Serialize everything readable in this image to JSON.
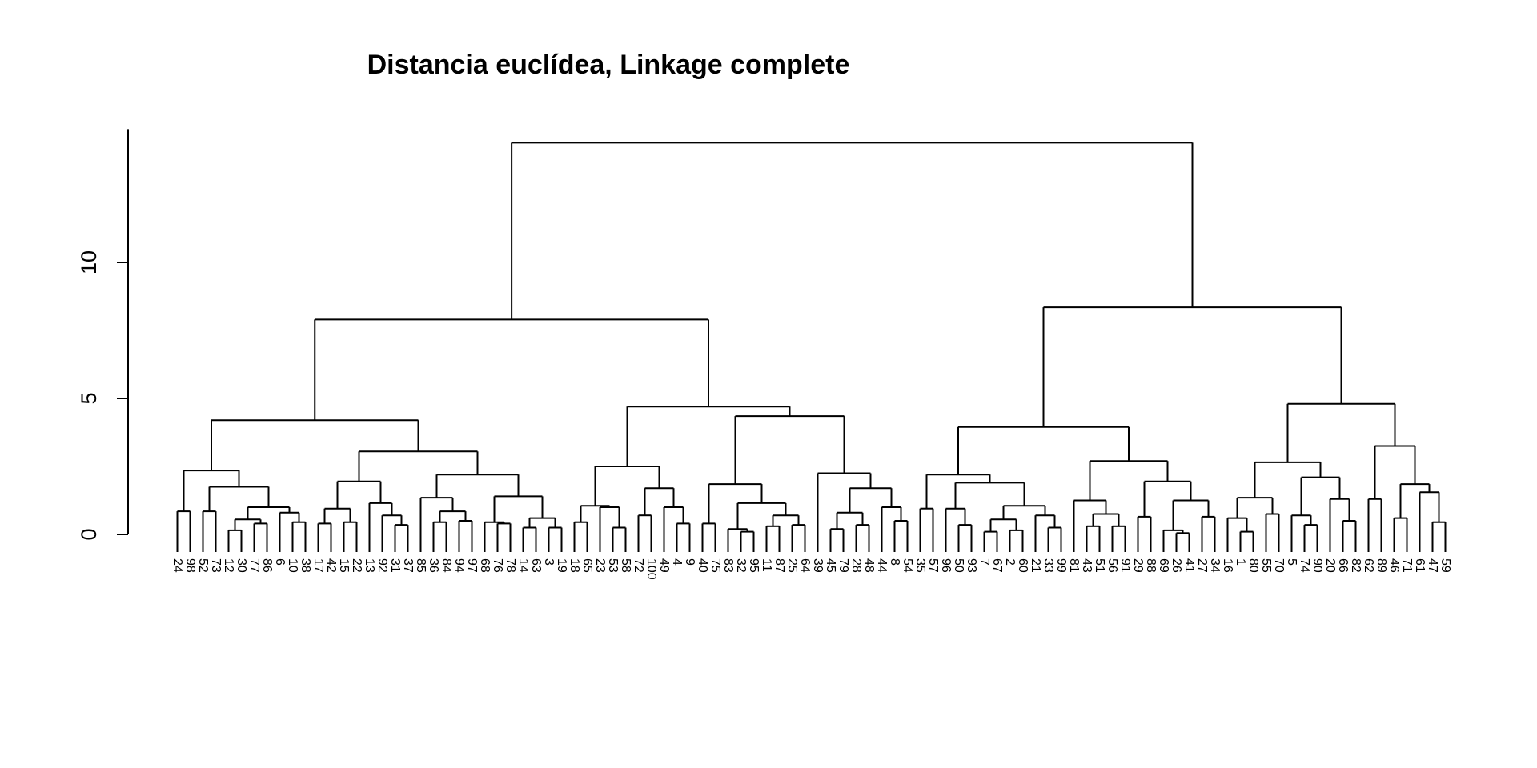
{
  "chart_data": {
    "type": "dendrogram",
    "title": "Distancia euclídea, Linkage complete",
    "xlabel": "",
    "ylabel": "",
    "y_ticks": [
      0,
      5,
      10
    ],
    "ylim": [
      0,
      14.5
    ],
    "leaf_order": [
      24,
      98,
      52,
      73,
      12,
      30,
      77,
      86,
      6,
      10,
      38,
      17,
      42,
      15,
      22,
      13,
      92,
      31,
      37,
      85,
      36,
      84,
      94,
      97,
      68,
      76,
      78,
      14,
      63,
      3,
      19,
      18,
      65,
      23,
      53,
      58,
      72,
      100,
      49,
      4,
      9,
      40,
      75,
      83,
      32,
      95,
      11,
      87,
      25,
      64,
      39,
      45,
      79,
      28,
      48,
      44,
      8,
      54,
      35,
      57,
      96,
      50,
      93,
      7,
      67,
      2,
      60,
      21,
      33,
      99,
      81,
      43,
      51,
      56,
      91,
      29,
      88,
      69,
      26,
      41,
      27,
      34,
      16,
      1,
      80,
      55,
      70,
      5,
      74,
      90,
      20,
      66,
      82,
      62,
      89,
      46,
      71,
      61,
      47,
      59
    ],
    "tree": {
      "h": 14.4,
      "c": [
        {
          "h": 7.9,
          "c": [
            {
              "h": 4.2,
              "c": [
                {
                  "h": 2.35,
                  "c": [
                    {
                      "h": 0.85,
                      "c": [
                        24,
                        98
                      ]
                    },
                    {
                      "h": 1.75,
                      "c": [
                        {
                          "h": 0.85,
                          "c": [
                            52,
                            73
                          ]
                        },
                        {
                          "h": 1.0,
                          "c": [
                            {
                              "h": 0.55,
                              "c": [
                                {
                                  "h": 0.15,
                                  "c": [
                                    12,
                                    30
                                  ]
                                },
                                {
                                  "h": 0.4,
                                  "c": [
                                    77,
                                    86
                                  ]
                                }
                              ]
                            },
                            {
                              "h": 0.8,
                              "c": [
                                6,
                                {
                                  "h": 0.45,
                                  "c": [
                                    10,
                                    38
                                  ]
                                }
                              ]
                            }
                          ]
                        }
                      ]
                    }
                  ]
                },
                {
                  "h": 3.05,
                  "c": [
                    {
                      "h": 1.95,
                      "c": [
                        {
                          "h": 0.95,
                          "c": [
                            {
                              "h": 0.4,
                              "c": [
                                17,
                                42
                              ]
                            },
                            {
                              "h": 0.45,
                              "c": [
                                15,
                                22
                              ]
                            }
                          ]
                        },
                        {
                          "h": 1.15,
                          "c": [
                            13,
                            {
                              "h": 0.7,
                              "c": [
                                92,
                                {
                                  "h": 0.35,
                                  "c": [
                                    31,
                                    37
                                  ]
                                }
                              ]
                            }
                          ]
                        }
                      ]
                    },
                    {
                      "h": 2.2,
                      "c": [
                        {
                          "h": 1.35,
                          "c": [
                            85,
                            {
                              "h": 0.85,
                              "c": [
                                {
                                  "h": 0.45,
                                  "c": [
                                    36,
                                    84
                                  ]
                                },
                                {
                                  "h": 0.5,
                                  "c": [
                                    94,
                                    97
                                  ]
                                }
                              ]
                            }
                          ]
                        },
                        {
                          "h": 1.4,
                          "c": [
                            {
                              "h": 0.45,
                              "c": [
                                68,
                                {
                                  "h": 0.4,
                                  "c": [
                                    76,
                                    78
                                  ]
                                }
                              ]
                            },
                            {
                              "h": 0.6,
                              "c": [
                                {
                                  "h": 0.25,
                                  "c": [
                                    14,
                                    63
                                  ]
                                },
                                {
                                  "h": 0.25,
                                  "c": [
                                    3,
                                    19
                                  ]
                                }
                              ]
                            }
                          ]
                        }
                      ]
                    }
                  ]
                }
              ]
            },
            {
              "h": 4.7,
              "c": [
                {
                  "h": 2.5,
                  "c": [
                    {
                      "h": 1.05,
                      "c": [
                        {
                          "h": 0.45,
                          "c": [
                            18,
                            65
                          ]
                        },
                        {
                          "h": 1.0,
                          "c": [
                            23,
                            {
                              "h": 0.25,
                              "c": [
                                53,
                                58
                              ]
                            }
                          ]
                        }
                      ]
                    },
                    {
                      "h": 1.7,
                      "c": [
                        {
                          "h": 0.7,
                          "c": [
                            72,
                            100
                          ]
                        },
                        {
                          "h": 1.0,
                          "c": [
                            49,
                            {
                              "h": 0.4,
                              "c": [
                                4,
                                9
                              ]
                            }
                          ]
                        }
                      ]
                    }
                  ]
                },
                {
                  "h": 4.35,
                  "c": [
                    {
                      "h": 1.85,
                      "c": [
                        {
                          "h": 0.4,
                          "c": [
                            40,
                            75
                          ]
                        },
                        {
                          "h": 1.15,
                          "c": [
                            {
                              "h": 0.2,
                              "c": [
                                83,
                                {
                                  "h": 0.1,
                                  "c": [
                                    32,
                                    95
                                  ]
                                }
                              ]
                            },
                            {
                              "h": 0.7,
                              "c": [
                                {
                                  "h": 0.3,
                                  "c": [
                                    11,
                                    87
                                  ]
                                },
                                {
                                  "h": 0.35,
                                  "c": [
                                    25,
                                    64
                                  ]
                                }
                              ]
                            }
                          ]
                        }
                      ]
                    },
                    {
                      "h": 2.25,
                      "c": [
                        39,
                        {
                          "h": 1.7,
                          "c": [
                            {
                              "h": 0.8,
                              "c": [
                                {
                                  "h": 0.2,
                                  "c": [
                                    45,
                                    79
                                  ]
                                },
                                {
                                  "h": 0.35,
                                  "c": [
                                    28,
                                    48
                                  ]
                                }
                              ]
                            },
                            {
                              "h": 1.0,
                              "c": [
                                44,
                                {
                                  "h": 0.5,
                                  "c": [
                                    8,
                                    54
                                  ]
                                }
                              ]
                            }
                          ]
                        }
                      ]
                    }
                  ]
                }
              ]
            }
          ]
        },
        {
          "h": 8.35,
          "c": [
            {
              "h": 3.95,
              "c": [
                {
                  "h": 2.2,
                  "c": [
                    {
                      "h": 0.95,
                      "c": [
                        35,
                        57
                      ]
                    },
                    {
                      "h": 1.9,
                      "c": [
                        {
                          "h": 0.95,
                          "c": [
                            96,
                            {
                              "h": 0.35,
                              "c": [
                                50,
                                93
                              ]
                            }
                          ]
                        },
                        {
                          "h": 1.05,
                          "c": [
                            {
                              "h": 0.55,
                              "c": [
                                {
                                  "h": 0.1,
                                  "c": [
                                    7,
                                    67
                                  ]
                                },
                                {
                                  "h": 0.15,
                                  "c": [
                                    2,
                                    60
                                  ]
                                }
                              ]
                            },
                            {
                              "h": 0.7,
                              "c": [
                                21,
                                {
                                  "h": 0.25,
                                  "c": [
                                    33,
                                    99
                                  ]
                                }
                              ]
                            }
                          ]
                        }
                      ]
                    }
                  ]
                },
                {
                  "h": 2.7,
                  "c": [
                    {
                      "h": 1.25,
                      "c": [
                        81,
                        {
                          "h": 0.75,
                          "c": [
                            {
                              "h": 0.3,
                              "c": [
                                43,
                                51
                              ]
                            },
                            {
                              "h": 0.3,
                              "c": [
                                56,
                                91
                              ]
                            }
                          ]
                        }
                      ]
                    },
                    {
                      "h": 1.95,
                      "c": [
                        {
                          "h": 0.65,
                          "c": [
                            29,
                            88
                          ]
                        },
                        {
                          "h": 1.25,
                          "c": [
                            {
                              "h": 0.15,
                              "c": [
                                69,
                                {
                                  "h": 0.05,
                                  "c": [
                                    26,
                                    41
                                  ]
                                }
                              ]
                            },
                            {
                              "h": 0.65,
                              "c": [
                                27,
                                34
                              ]
                            }
                          ]
                        }
                      ]
                    }
                  ]
                }
              ]
            },
            {
              "h": 4.8,
              "c": [
                {
                  "h": 2.65,
                  "c": [
                    {
                      "h": 1.35,
                      "c": [
                        {
                          "h": 0.6,
                          "c": [
                            16,
                            {
                              "h": 0.1,
                              "c": [
                                1,
                                80
                              ]
                            }
                          ]
                        },
                        {
                          "h": 0.75,
                          "c": [
                            55,
                            70
                          ]
                        }
                      ]
                    },
                    {
                      "h": 2.1,
                      "c": [
                        {
                          "h": 0.7,
                          "c": [
                            5,
                            {
                              "h": 0.35,
                              "c": [
                                74,
                                90
                              ]
                            }
                          ]
                        },
                        {
                          "h": 1.3,
                          "c": [
                            20,
                            {
                              "h": 0.5,
                              "c": [
                                66,
                                82
                              ]
                            }
                          ]
                        }
                      ]
                    }
                  ]
                },
                {
                  "h": 3.25,
                  "c": [
                    {
                      "h": 1.3,
                      "c": [
                        62,
                        89
                      ]
                    },
                    {
                      "h": 1.85,
                      "c": [
                        {
                          "h": 0.6,
                          "c": [
                            46,
                            71
                          ]
                        },
                        {
                          "h": 1.55,
                          "c": [
                            61,
                            {
                              "h": 0.45,
                              "c": [
                                47,
                                59
                              ]
                            }
                          ]
                        }
                      ]
                    }
                  ]
                }
              ]
            }
          ]
        }
      ]
    }
  }
}
